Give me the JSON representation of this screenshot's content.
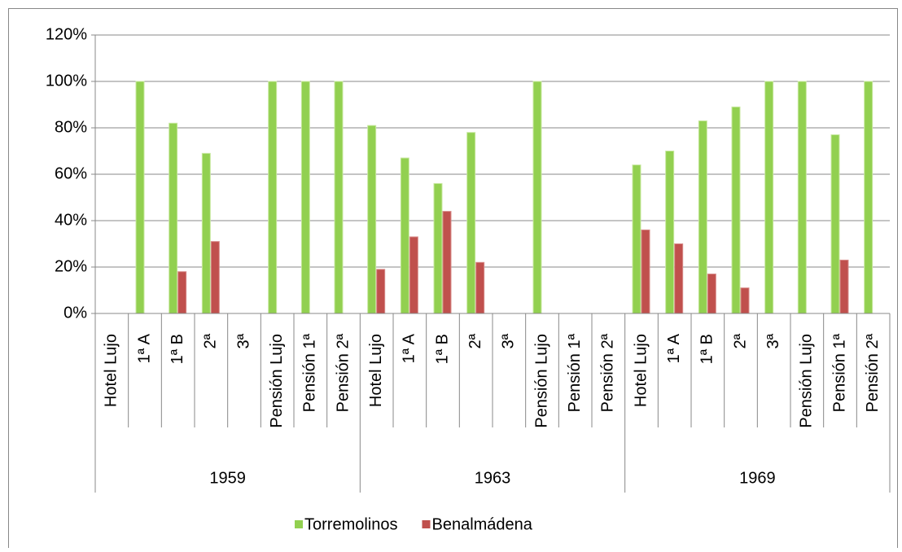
{
  "chart_data": {
    "type": "bar",
    "categories": [
      "Hotel Lujo",
      "1ª A",
      "1ª B",
      "2ª",
      "3ª",
      "Pensión Lujo",
      "Pensión 1ª",
      "Pensión 2ª",
      "Hotel Lujo",
      "1ª A",
      "1ª B",
      "2ª",
      "3ª",
      "Pensión Lujo",
      "Pensión 1ª",
      "Pensión 2ª",
      "Hotel Lujo",
      "1ª A",
      "1ª B",
      "2ª",
      "3ª",
      "Pensión Lujo",
      "Pensión 1ª",
      "Pensión 2ª"
    ],
    "category_groups": [
      "1959",
      "1963",
      "1969"
    ],
    "series": [
      {
        "name": "Torremolinos",
        "color": "#92d050",
        "values": [
          null,
          100,
          82,
          69,
          null,
          100,
          100,
          100,
          81,
          67,
          56,
          78,
          null,
          100,
          null,
          null,
          64,
          70,
          83,
          89,
          100,
          100,
          77,
          100
        ]
      },
      {
        "name": "Benalmádena",
        "color": "#c0504d",
        "values": [
          null,
          0,
          18,
          31,
          null,
          0,
          0,
          0,
          19,
          33,
          44,
          22,
          null,
          0,
          null,
          null,
          36,
          30,
          17,
          11,
          0,
          0,
          23,
          0
        ]
      }
    ],
    "ylim": [
      0,
      120
    ],
    "yticks": [
      {
        "value": 0,
        "label": "0%"
      },
      {
        "value": 20,
        "label": "20%"
      },
      {
        "value": 40,
        "label": "40%"
      },
      {
        "value": 60,
        "label": "60%"
      },
      {
        "value": 80,
        "label": "80%"
      },
      {
        "value": 100,
        "label": "100%"
      },
      {
        "value": 120,
        "label": "120%"
      }
    ],
    "grid": true,
    "legend": "bottom"
  }
}
